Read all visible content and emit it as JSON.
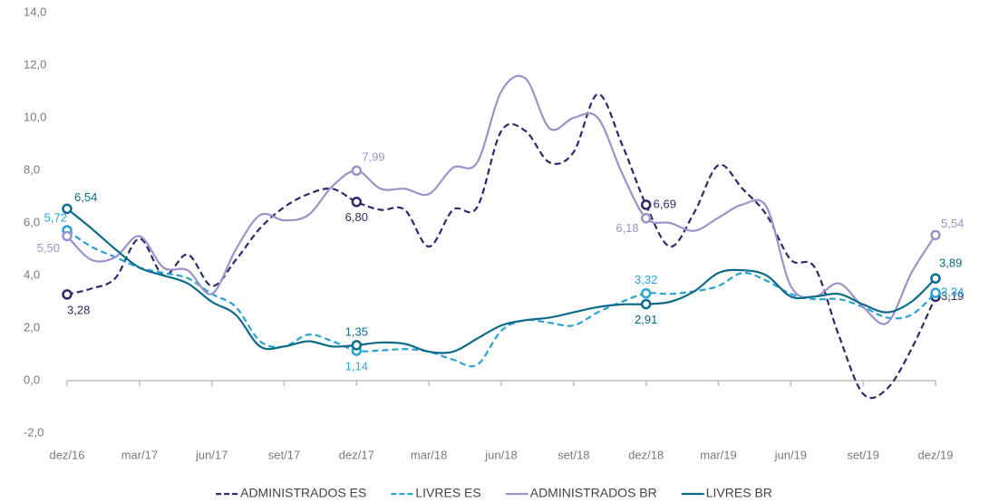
{
  "chart_data": {
    "type": "line",
    "categories": [
      "dez/16",
      null,
      null,
      "mar/17",
      null,
      null,
      "jun/17",
      null,
      null,
      "set/17",
      null,
      null,
      "dez/17",
      null,
      null,
      "mar/18",
      null,
      null,
      "jun/18",
      null,
      null,
      "set/18",
      null,
      null,
      "dez/18",
      null,
      null,
      "mar/19",
      null,
      null,
      "jun/19",
      null,
      null,
      "set/19",
      null,
      null,
      "dez/19"
    ],
    "ylim": [
      -2,
      14
    ],
    "yticks": [
      {
        "value": -2,
        "label": "-2,0"
      },
      {
        "value": 0,
        "label": "0,0"
      },
      {
        "value": 2,
        "label": "2,0"
      },
      {
        "value": 4,
        "label": "4,0"
      },
      {
        "value": 6,
        "label": "6,0"
      },
      {
        "value": 8,
        "label": "8,0"
      },
      {
        "value": 10,
        "label": "10,0"
      },
      {
        "value": 12,
        "label": "12,0"
      },
      {
        "value": 14,
        "label": "14,0"
      }
    ],
    "legend": "bottom",
    "series": [
      {
        "name": "ADMINISTRADOS ES",
        "color": "#2e2a6b",
        "dashed": true,
        "values": [
          3.28,
          3.5,
          3.9,
          5.4,
          4.0,
          4.8,
          3.6,
          4.6,
          5.8,
          6.6,
          7.1,
          7.3,
          6.8,
          6.5,
          6.5,
          5.1,
          6.5,
          6.6,
          9.5,
          9.5,
          8.3,
          8.7,
          10.9,
          9.0,
          6.69,
          5.1,
          6.4,
          8.2,
          7.3,
          6.3,
          4.6,
          4.3,
          1.7,
          -0.5,
          -0.3,
          1.2,
          3.19
        ],
        "value_labels": [
          "3,28",
          null,
          null,
          null,
          null,
          null,
          null,
          null,
          null,
          null,
          null,
          null,
          "6,80",
          null,
          null,
          null,
          null,
          null,
          null,
          null,
          null,
          null,
          null,
          null,
          "6,69",
          null,
          null,
          null,
          null,
          null,
          null,
          null,
          null,
          null,
          null,
          null,
          "3,19"
        ]
      },
      {
        "name": "LIVRES ES",
        "color": "#29a3d4",
        "dashed": true,
        "values": [
          5.72,
          5.1,
          4.7,
          4.3,
          4.1,
          3.9,
          3.3,
          2.8,
          1.5,
          1.3,
          1.75,
          1.5,
          1.14,
          1.15,
          1.2,
          1.1,
          0.8,
          0.6,
          1.9,
          2.3,
          2.2,
          2.1,
          2.6,
          3.0,
          3.32,
          3.3,
          3.4,
          3.6,
          4.1,
          3.8,
          3.3,
          3.1,
          3.1,
          2.8,
          2.4,
          2.5,
          3.34
        ],
        "value_labels": [
          "5,72",
          null,
          null,
          null,
          null,
          null,
          null,
          null,
          null,
          null,
          null,
          null,
          "1,14",
          null,
          null,
          null,
          null,
          null,
          null,
          null,
          null,
          null,
          null,
          null,
          "3,32",
          null,
          null,
          null,
          null,
          null,
          null,
          null,
          null,
          null,
          null,
          null,
          "3,34"
        ]
      },
      {
        "name": "ADMINISTRADOS BR",
        "color": "#9b93c9",
        "dashed": false,
        "values": [
          5.5,
          4.6,
          4.7,
          5.5,
          4.3,
          4.2,
          3.3,
          5.0,
          6.3,
          6.1,
          6.3,
          7.4,
          7.99,
          7.3,
          7.3,
          7.1,
          8.1,
          8.3,
          11.0,
          11.5,
          9.6,
          10.0,
          10.0,
          7.9,
          6.18,
          6.0,
          5.7,
          6.2,
          6.7,
          6.6,
          3.6,
          3.2,
          3.7,
          2.8,
          2.2,
          4.1,
          5.54
        ],
        "value_labels": [
          "5,50",
          null,
          null,
          null,
          null,
          null,
          null,
          null,
          null,
          null,
          null,
          null,
          "7,99",
          null,
          null,
          null,
          null,
          null,
          null,
          null,
          null,
          null,
          null,
          null,
          "6,18",
          null,
          null,
          null,
          null,
          null,
          null,
          null,
          null,
          null,
          null,
          null,
          "5,54"
        ]
      },
      {
        "name": "LIVRES BR",
        "color": "#0d6b8a",
        "dashed": false,
        "values": [
          6.54,
          5.8,
          5.0,
          4.3,
          4.0,
          3.7,
          3.0,
          2.5,
          1.3,
          1.3,
          1.5,
          1.3,
          1.35,
          1.45,
          1.4,
          1.1,
          1.1,
          1.6,
          2.1,
          2.3,
          2.4,
          2.6,
          2.8,
          2.9,
          2.91,
          3.0,
          3.4,
          4.1,
          4.2,
          4.0,
          3.2,
          3.2,
          3.3,
          2.9,
          2.6,
          3.0,
          3.89
        ],
        "value_labels": [
          "6,54",
          null,
          null,
          null,
          null,
          null,
          null,
          null,
          null,
          null,
          null,
          null,
          "1,35",
          null,
          null,
          null,
          null,
          null,
          null,
          null,
          null,
          null,
          null,
          null,
          "2,91",
          null,
          null,
          null,
          null,
          null,
          null,
          null,
          null,
          null,
          null,
          null,
          "3,89"
        ]
      }
    ]
  }
}
